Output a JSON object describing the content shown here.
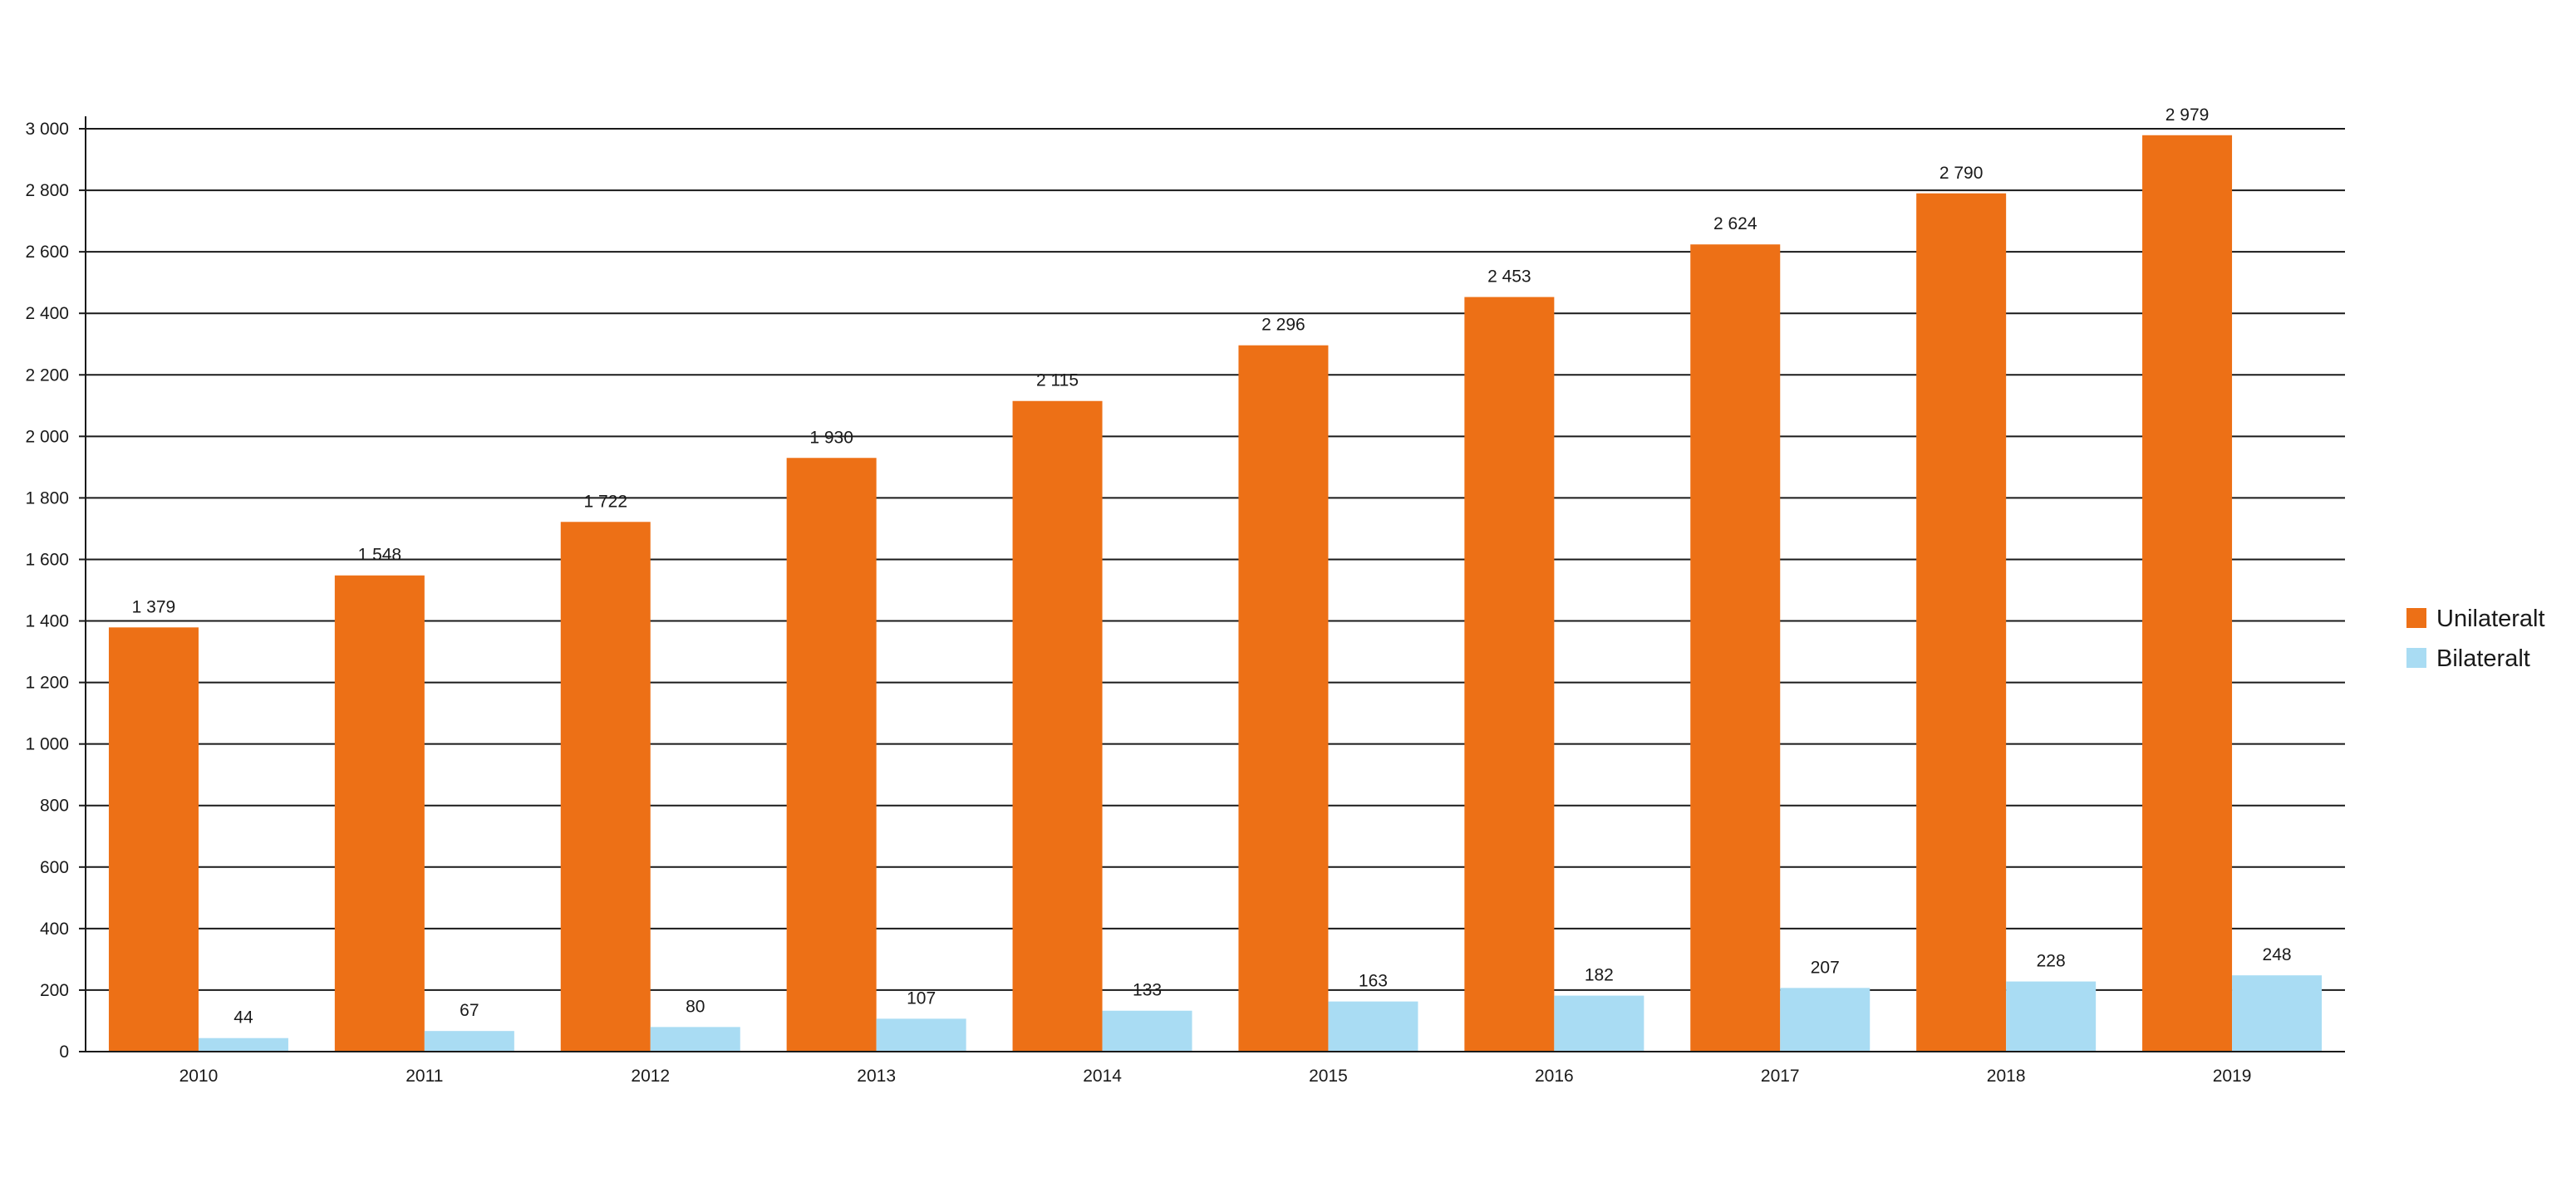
{
  "chart_data": {
    "type": "bar",
    "categories": [
      "2010",
      "2011",
      "2012",
      "2013",
      "2014",
      "2015",
      "2016",
      "2017",
      "2018",
      "2019"
    ],
    "series": [
      {
        "name": "Unilateralt",
        "color": "#ed7016",
        "values": [
          1379,
          1548,
          1722,
          1930,
          2115,
          2296,
          2453,
          2624,
          2790,
          2979
        ],
        "labels": [
          "1 379",
          "1 548",
          "1 722",
          "1 930",
          "2 115",
          "2 296",
          "2 453",
          "2 624",
          "2 790",
          "2 979"
        ]
      },
      {
        "name": "Bilateralt",
        "color": "#a9dcf3",
        "values": [
          44,
          67,
          80,
          107,
          133,
          163,
          182,
          207,
          228,
          248
        ],
        "labels": [
          "44",
          "67",
          "80",
          "107",
          "133",
          "163",
          "182",
          "207",
          "228",
          "248"
        ]
      }
    ],
    "ylim": [
      0,
      3000
    ],
    "y_ticks": [
      0,
      200,
      400,
      600,
      800,
      1000,
      1200,
      1400,
      1600,
      1800,
      2000,
      2200,
      2400,
      2600,
      2800,
      3000
    ],
    "y_tick_labels": [
      "0",
      "200",
      "400",
      "600",
      "800",
      "1 000",
      "1 200",
      "1 400",
      "1 600",
      "1 800",
      "2 000",
      "2 200",
      "2 400",
      "2 600",
      "2 800",
      "3 000"
    ],
    "grid": true,
    "legend_position": "right"
  }
}
